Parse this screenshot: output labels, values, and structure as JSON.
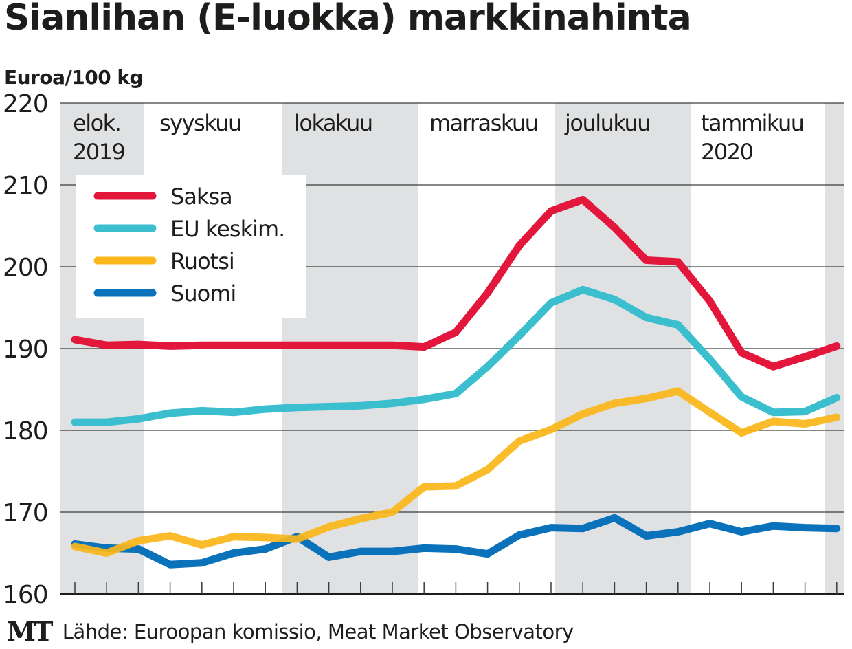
{
  "header": {
    "title": "Sianlihan (E-luokka) markkinahinta",
    "unit": "Euroa/100 kg"
  },
  "footer": {
    "logo": "MT",
    "source": "Lähde: Euroopan komissio, Meat Market Observatory"
  },
  "colors": {
    "Saksa": "#e3173c",
    "EU keskim.": "#3bbfcf",
    "Ruotsi": "#fbb619",
    "Suomi": "#0a72bb",
    "band": "#dfe1e3",
    "grid": "#1d1d1b"
  },
  "chart_data": {
    "type": "line",
    "title": "Sianlihan (E-luokka) markkinahinta",
    "ylabel": "Euroa/100 kg",
    "xlabel": "",
    "ylim": [
      160,
      220
    ],
    "yticks": [
      160,
      170,
      180,
      190,
      200,
      210,
      220
    ],
    "grid": true,
    "legend_position": "top-left",
    "x": [
      1,
      2,
      3,
      4,
      5,
      6,
      7,
      8,
      9,
      10,
      11,
      12,
      13,
      14,
      15,
      16,
      17,
      18,
      19,
      20,
      21,
      22,
      23,
      24,
      25
    ],
    "x_unit": "week",
    "months": [
      {
        "label": "elok.",
        "label2": "2019",
        "shaded": true
      },
      {
        "label": "syyskuu",
        "label2": "",
        "shaded": false
      },
      {
        "label": "lokakuu",
        "label2": "",
        "shaded": true
      },
      {
        "label": "marraskuu",
        "label2": "",
        "shaded": false
      },
      {
        "label": "joulukuu",
        "label2": "",
        "shaded": true
      },
      {
        "label": "tammikuu",
        "label2": "2020",
        "shaded": false
      },
      {
        "label": "",
        "label2": "",
        "shaded": true
      }
    ],
    "series": [
      {
        "name": "Saksa",
        "values": [
          191.1,
          190.4,
          190.5,
          190.3,
          190.4,
          190.4,
          190.4,
          190.4,
          190.4,
          190.4,
          190.4,
          190.2,
          192.0,
          196.8,
          202.6,
          206.8,
          208.2,
          204.8,
          200.8,
          200.6,
          195.8,
          189.5,
          187.8,
          189.0,
          190.3
        ]
      },
      {
        "name": "EU keskim.",
        "values": [
          181.0,
          181.0,
          181.4,
          182.1,
          182.4,
          182.2,
          182.6,
          182.8,
          182.9,
          183.0,
          183.3,
          183.8,
          184.5,
          187.8,
          191.6,
          195.6,
          197.2,
          196.0,
          193.8,
          192.9,
          188.7,
          184.1,
          182.2,
          182.3,
          184.0
        ]
      },
      {
        "name": "Ruotsi",
        "values": [
          165.8,
          165.0,
          166.5,
          167.1,
          166.0,
          167.0,
          166.9,
          166.7,
          168.2,
          169.2,
          170.0,
          173.1,
          173.2,
          175.2,
          178.7,
          180.1,
          182.0,
          183.3,
          183.9,
          184.8,
          182.2,
          179.7,
          181.1,
          180.8,
          181.6
        ]
      },
      {
        "name": "Suomi",
        "values": [
          166.1,
          165.6,
          165.5,
          163.6,
          163.8,
          165.0,
          165.5,
          167.0,
          164.5,
          165.2,
          165.2,
          165.6,
          165.5,
          164.9,
          167.2,
          168.1,
          168.0,
          169.3,
          167.1,
          167.6,
          168.6,
          167.6,
          168.3,
          168.1,
          168.0
        ]
      }
    ]
  }
}
